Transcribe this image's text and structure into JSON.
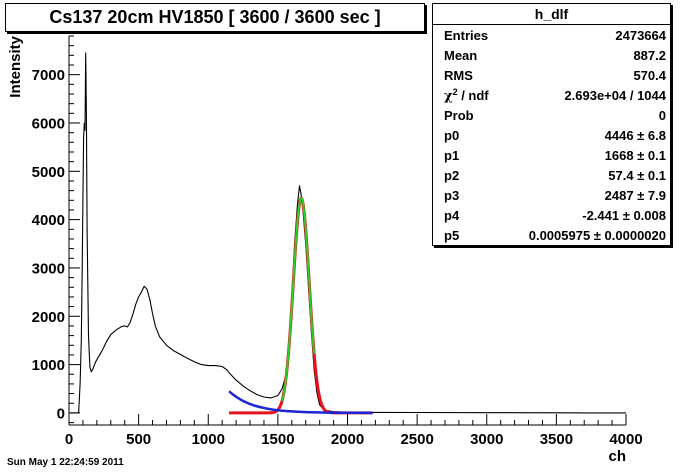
{
  "chart_data": {
    "type": "line",
    "title": "Cs137 20cm HV1850 [ 3600 / 3600 sec ]",
    "xlabel": "ch",
    "ylabel": "Intensity",
    "xlim": [
      0,
      4000
    ],
    "ylim": [
      -250,
      7800
    ],
    "x_ticks": [
      0,
      500,
      1000,
      1500,
      2000,
      2500,
      3000,
      3500,
      4000
    ],
    "y_ticks": [
      0,
      1000,
      2000,
      3000,
      4000,
      5000,
      6000,
      7000
    ],
    "grid": false,
    "series": [
      {
        "color": "#000000",
        "points": [
          [
            0,
            0
          ],
          [
            60,
            0
          ],
          [
            70,
            20
          ],
          [
            80,
            600
          ],
          [
            88,
            1500
          ],
          [
            95,
            3000
          ],
          [
            100,
            4400
          ],
          [
            105,
            5700
          ],
          [
            110,
            6000
          ],
          [
            115,
            5850
          ],
          [
            120,
            7450
          ],
          [
            125,
            6200
          ],
          [
            130,
            3800
          ],
          [
            140,
            1600
          ],
          [
            150,
            950
          ],
          [
            160,
            850
          ],
          [
            170,
            900
          ],
          [
            190,
            1050
          ],
          [
            210,
            1150
          ],
          [
            240,
            1300
          ],
          [
            270,
            1480
          ],
          [
            300,
            1620
          ],
          [
            340,
            1720
          ],
          [
            380,
            1790
          ],
          [
            400,
            1800
          ],
          [
            420,
            1780
          ],
          [
            440,
            1880
          ],
          [
            460,
            2060
          ],
          [
            480,
            2250
          ],
          [
            500,
            2400
          ],
          [
            520,
            2500
          ],
          [
            540,
            2620
          ],
          [
            560,
            2560
          ],
          [
            580,
            2350
          ],
          [
            600,
            2050
          ],
          [
            620,
            1800
          ],
          [
            650,
            1580
          ],
          [
            700,
            1400
          ],
          [
            750,
            1290
          ],
          [
            800,
            1210
          ],
          [
            850,
            1130
          ],
          [
            900,
            1060
          ],
          [
            950,
            1000
          ],
          [
            1000,
            980
          ],
          [
            1050,
            980
          ],
          [
            1100,
            960
          ],
          [
            1130,
            900
          ],
          [
            1160,
            800
          ],
          [
            1200,
            680
          ],
          [
            1250,
            560
          ],
          [
            1300,
            460
          ],
          [
            1350,
            380
          ],
          [
            1400,
            330
          ],
          [
            1450,
            310
          ],
          [
            1500,
            360
          ],
          [
            1530,
            500
          ],
          [
            1560,
            800
          ],
          [
            1580,
            1400
          ],
          [
            1600,
            2400
          ],
          [
            1620,
            3500
          ],
          [
            1640,
            4300
          ],
          [
            1655,
            4700
          ],
          [
            1665,
            4550
          ],
          [
            1680,
            4200
          ],
          [
            1700,
            3500
          ],
          [
            1720,
            2600
          ],
          [
            1740,
            1700
          ],
          [
            1760,
            900
          ],
          [
            1780,
            420
          ],
          [
            1800,
            170
          ],
          [
            1830,
            60
          ],
          [
            1900,
            25
          ],
          [
            2000,
            15
          ],
          [
            2200,
            10
          ],
          [
            2500,
            8
          ],
          [
            3000,
            5
          ],
          [
            3500,
            3
          ],
          [
            3600,
            2
          ],
          [
            3700,
            0
          ],
          [
            4000,
            0
          ]
        ]
      },
      {
        "color": "#e8121c",
        "fit": "gauss + pol",
        "xlim": [
          1150,
          2180
        ]
      },
      {
        "color": "#1a25d9",
        "fit": "exponential background",
        "xlim": [
          1150,
          2180
        ]
      },
      {
        "color": "#2bcf2b",
        "fit": "gauss",
        "xlim": [
          1530,
          1760
        ]
      }
    ],
    "params": {
      "p0": 4446,
      "p1": 1668,
      "p2": 57.4,
      "p3": 2487,
      "p4": -2.441,
      "p5": 0.0005975
    }
  },
  "stats": {
    "title": "h_dlf",
    "rows": [
      {
        "key": "Entries",
        "value": "2473664"
      },
      {
        "key": "Mean",
        "value": "887.2"
      },
      {
        "key": "RMS",
        "value": "570.4"
      },
      {
        "key_sym": "χ",
        "key_sup": "2",
        "key_rest": " / ndf",
        "value": "2.693e+04 / 1044"
      },
      {
        "key": "Prob",
        "value": "0"
      },
      {
        "key": "p0",
        "value": "4446 ± 6.8"
      },
      {
        "key": "p1",
        "value": "1668 ± 0.1"
      },
      {
        "key": "p2",
        "value": "57.4 ± 0.1"
      },
      {
        "key": "p3",
        "value": "2487 ± 7.9"
      },
      {
        "key": "p4",
        "value": "-2.441 ± 0.008"
      },
      {
        "key": "p5",
        "value": "0.0005975 ± 0.0000020"
      }
    ]
  },
  "footer": {
    "timestamp": "Sun May  1 22:24:59 2011"
  }
}
